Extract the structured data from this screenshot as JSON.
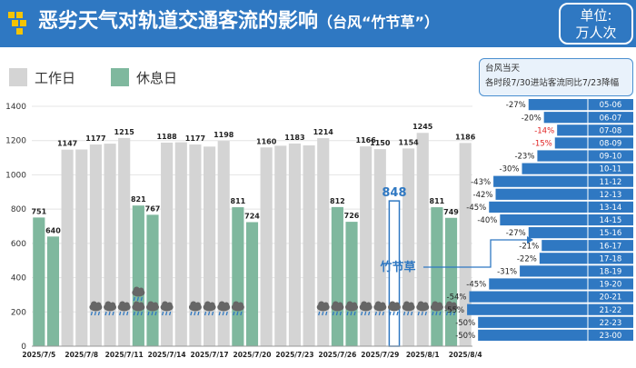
{
  "header": {
    "title": "恶劣天气对轨道交通客流的影响",
    "subtitle": "（台风“竹节草”）",
    "unit_line1": "单位:",
    "unit_line2": "万人次"
  },
  "legend": {
    "workday": "工作日",
    "restday": "休息日"
  },
  "typhoon_box": {
    "line1": "台风当天",
    "line2": "各时段7/30进站客流同比7/23降幅"
  },
  "typhoon_label": "竹节草",
  "colors": {
    "header": "#2f78c2",
    "workday": "#d4d4d4",
    "restday": "#7fb89e",
    "accent": "#2f78c2",
    "negative_red": "#e02020"
  },
  "chart_data": {
    "type": "bar",
    "title": "恶劣天气对轨道交通客流的影响",
    "ylim": [
      0,
      1400
    ],
    "yticks": [
      0,
      200,
      400,
      600,
      800,
      1000,
      1200,
      1400
    ],
    "days": [
      {
        "date": "2025/7/5",
        "value": 751,
        "type": "rest",
        "label": "751"
      },
      {
        "date": "2025/7/6",
        "value": 640,
        "type": "rest",
        "label": "640"
      },
      {
        "date": "2025/7/7",
        "value": 1147,
        "type": "work",
        "label": "1147"
      },
      {
        "date": "2025/7/8",
        "value": 1148,
        "type": "work",
        "label": ""
      },
      {
        "date": "2025/7/9",
        "value": 1177,
        "type": "work",
        "label": "1177"
      },
      {
        "date": "2025/7/10",
        "value": 1182,
        "type": "work",
        "label": ""
      },
      {
        "date": "2025/7/11",
        "value": 1215,
        "type": "work",
        "label": "1215"
      },
      {
        "date": "2025/7/12",
        "value": 821,
        "type": "rest",
        "label": "821"
      },
      {
        "date": "2025/7/13",
        "value": 767,
        "type": "rest",
        "label": "767"
      },
      {
        "date": "2025/7/14",
        "value": 1188,
        "type": "work",
        "label": "1188"
      },
      {
        "date": "2025/7/15",
        "value": 1190,
        "type": "work",
        "label": ""
      },
      {
        "date": "2025/7/16",
        "value": 1177,
        "type": "work",
        "label": "1177"
      },
      {
        "date": "2025/7/17",
        "value": 1165,
        "type": "work",
        "label": ""
      },
      {
        "date": "2025/7/18",
        "value": 1198,
        "type": "work",
        "label": "1198"
      },
      {
        "date": "2025/7/19",
        "value": 811,
        "type": "rest",
        "label": "811"
      },
      {
        "date": "2025/7/20",
        "value": 724,
        "type": "rest",
        "label": "724"
      },
      {
        "date": "2025/7/21",
        "value": 1160,
        "type": "work",
        "label": "1160"
      },
      {
        "date": "2025/7/22",
        "value": 1170,
        "type": "work",
        "label": ""
      },
      {
        "date": "2025/7/23",
        "value": 1183,
        "type": "work",
        "label": "1183"
      },
      {
        "date": "2025/7/24",
        "value": 1172,
        "type": "work",
        "label": ""
      },
      {
        "date": "2025/7/25",
        "value": 1214,
        "type": "work",
        "label": "1214"
      },
      {
        "date": "2025/7/26",
        "value": 812,
        "type": "rest",
        "label": "812"
      },
      {
        "date": "2025/7/27",
        "value": 726,
        "type": "rest",
        "label": "726"
      },
      {
        "date": "2025/7/28",
        "value": 1166,
        "type": "work",
        "label": "1166"
      },
      {
        "date": "2025/7/29",
        "value": 1150,
        "type": "work",
        "label": "1150"
      },
      {
        "date": "2025/7/30",
        "value": 848,
        "type": "typhoon",
        "label": "848"
      },
      {
        "date": "2025/7/31",
        "value": 1154,
        "type": "work",
        "label": "1154"
      },
      {
        "date": "2025/8/1",
        "value": 1245,
        "type": "work",
        "label": "1245"
      },
      {
        "date": "2025/8/2",
        "value": 811,
        "type": "rest",
        "label": "811"
      },
      {
        "date": "2025/8/3",
        "value": 749,
        "type": "rest",
        "label": "749"
      },
      {
        "date": "2025/8/4",
        "value": 1186,
        "type": "work",
        "label": "1186"
      }
    ],
    "xtick_labels": [
      "2025/7/5",
      "2025/7/8",
      "2025/7/11",
      "2025/7/14",
      "2025/7/17",
      "2025/7/20",
      "2025/7/23",
      "2025/7/26",
      "2025/7/29",
      "2025/8/1",
      "2025/8/4"
    ],
    "xtick_indices": [
      0,
      3,
      6,
      9,
      12,
      15,
      18,
      21,
      24,
      27,
      30
    ],
    "rain_days": [
      4,
      5,
      6,
      7,
      8,
      9,
      11,
      12,
      13,
      14,
      20,
      21,
      22,
      23,
      24,
      25,
      26,
      27,
      28,
      29
    ],
    "storm_days": [
      7
    ],
    "hourly": {
      "type": "bar",
      "periods": [
        "05-06",
        "06-07",
        "07-08",
        "08-09",
        "09-10",
        "10-11",
        "11-12",
        "12-13",
        "13-14",
        "14-15",
        "15-16",
        "16-17",
        "17-18",
        "18-19",
        "19-20",
        "20-21",
        "21-22",
        "22-23",
        "23-00"
      ],
      "values": [
        -27,
        -20,
        -14,
        -15,
        -23,
        -30,
        -43,
        -42,
        -45,
        -40,
        -27,
        -21,
        -22,
        -31,
        -45,
        -54,
        -55,
        -50,
        -50
      ],
      "labels": [
        "-27%",
        "-20%",
        "-14%",
        "-15%",
        "-23%",
        "-30%",
        "-43%",
        "-42%",
        "-45%",
        "-40%",
        "-27%",
        "-21%",
        "-22%",
        "-31%",
        "-45%",
        "-54%",
        "-55%",
        "-50%",
        "-50%"
      ],
      "highlight_red": [
        "07-08",
        "08-09"
      ]
    }
  }
}
